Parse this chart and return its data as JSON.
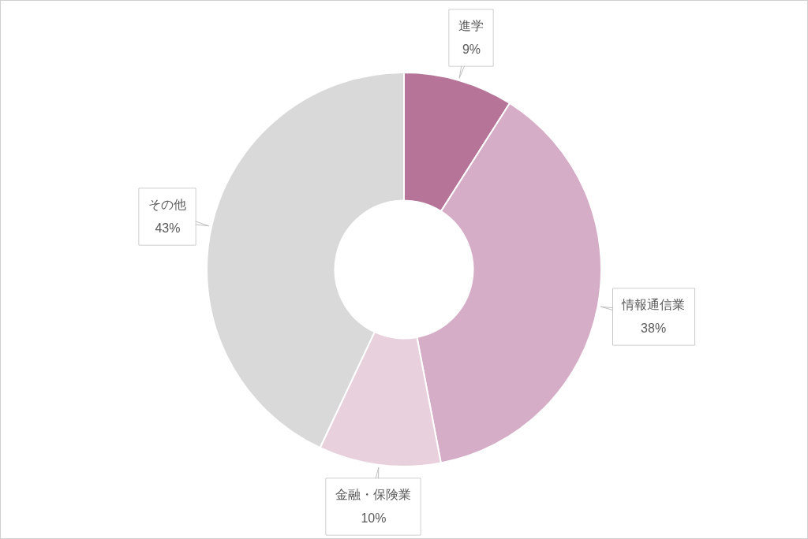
{
  "chart_data": {
    "type": "donut",
    "categories": [
      "進学",
      "情報通信業",
      "金融・保険業",
      "その他"
    ],
    "values": [
      9,
      38,
      10,
      43
    ],
    "value_labels": [
      "9%",
      "38%",
      "10%",
      "43%"
    ],
    "colors": [
      "#b57498",
      "#d6adc6",
      "#e8d0dd",
      "#d9d9d9"
    ],
    "legend": false
  }
}
